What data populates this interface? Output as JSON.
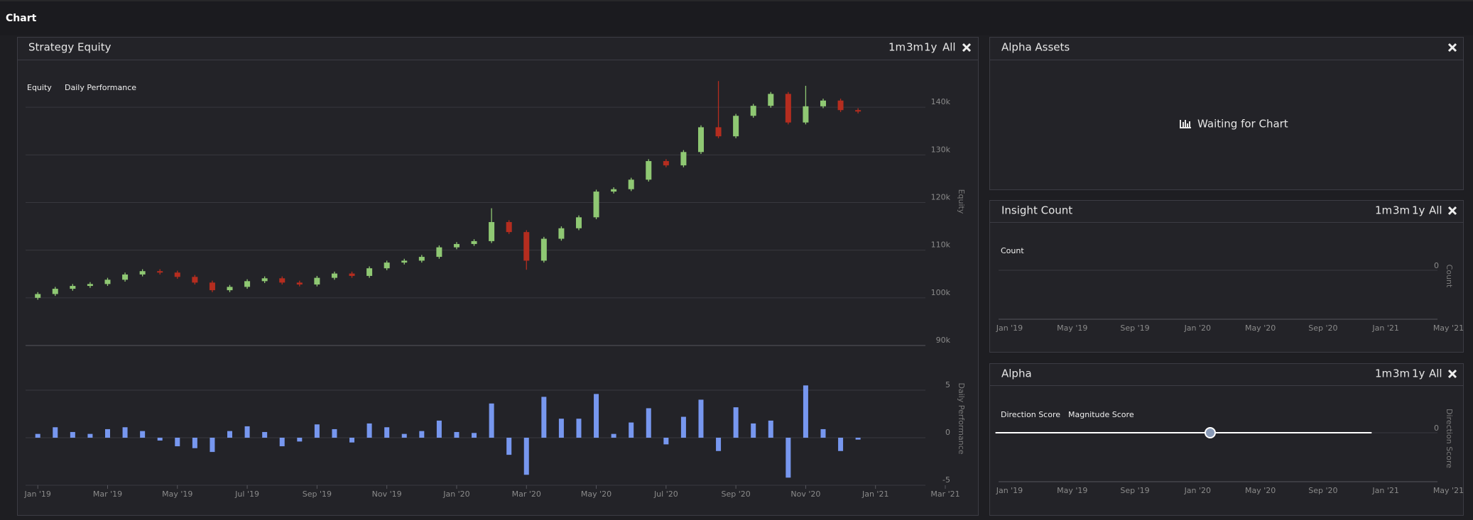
{
  "header": {
    "title": "Chart"
  },
  "panels": [
    {
      "title": "Strategy Equity",
      "buttons": [
        "1m",
        "3m",
        "1y",
        "All"
      ]
    },
    {
      "title": "Alpha Assets",
      "message": "Waiting for Chart"
    },
    {
      "title": "Insight Count",
      "buttons": [
        "1m",
        "3m",
        "1y",
        "All"
      ]
    },
    {
      "title": "Alpha",
      "buttons": [
        "1m",
        "3m",
        "1y",
        "All"
      ]
    }
  ],
  "chart_data": [
    {
      "type": "candlestick",
      "name": "Equity",
      "ylabel": "Equity",
      "up_color": "#8fc873",
      "down_color": "#b52d1f",
      "x": [
        0,
        0.5,
        1,
        1.5,
        2,
        2.5,
        3,
        3.5,
        4,
        4.5,
        5,
        5.5,
        6,
        6.5,
        7,
        7.5,
        8,
        8.5,
        9,
        9.5,
        10,
        10.5,
        11,
        11.5,
        12,
        12.5,
        13,
        13.5,
        14,
        14.5,
        15,
        15.5,
        16,
        16.5,
        17,
        17.5,
        18,
        18.5,
        19,
        19.5,
        20,
        20.5,
        21,
        21.5,
        22,
        22.5,
        23,
        23.5
      ],
      "open": [
        100000,
        100800,
        101900,
        102500,
        102900,
        103800,
        104900,
        105600,
        105300,
        104400,
        103200,
        101600,
        102300,
        103500,
        104100,
        103200,
        102800,
        104200,
        105100,
        104600,
        106200,
        107400,
        107800,
        108600,
        110600,
        111300,
        111900,
        115900,
        113800,
        107800,
        112400,
        114600,
        116900,
        122300,
        122800,
        124800,
        128700,
        127800,
        130600,
        135800,
        133900,
        138200,
        140300,
        142800,
        136800,
        140200,
        141400,
        139400
      ],
      "high": [
        101200,
        102300,
        102900,
        103300,
        104200,
        105300,
        106000,
        106000,
        105700,
        104800,
        103600,
        102700,
        103900,
        104500,
        104500,
        103600,
        104600,
        105500,
        105500,
        106600,
        107800,
        108200,
        109000,
        111000,
        111700,
        112300,
        118800,
        116300,
        114200,
        112800,
        115000,
        117300,
        122700,
        123200,
        125200,
        129100,
        129100,
        131000,
        136200,
        145500,
        138600,
        140700,
        143200,
        143200,
        144500,
        141800,
        141800,
        139800
      ],
      "low": [
        99600,
        100400,
        101500,
        102100,
        102500,
        103400,
        104500,
        104900,
        104000,
        102800,
        101200,
        101200,
        101900,
        103100,
        102800,
        102400,
        102400,
        103800,
        104200,
        104200,
        105800,
        107000,
        107400,
        108200,
        110200,
        110900,
        111500,
        113400,
        105900,
        107400,
        112000,
        114200,
        116500,
        121900,
        122400,
        124400,
        127400,
        127400,
        130200,
        133500,
        133500,
        137800,
        139900,
        136400,
        136400,
        139800,
        139000,
        138700
      ],
      "close": [
        100800,
        101900,
        102500,
        102900,
        103800,
        104900,
        105600,
        105300,
        104400,
        103200,
        101600,
        102300,
        103500,
        104100,
        103200,
        102800,
        104200,
        105100,
        104600,
        106200,
        107400,
        107800,
        108600,
        110600,
        111300,
        111900,
        115900,
        113800,
        107800,
        112400,
        114600,
        116900,
        122300,
        122800,
        124800,
        128700,
        127800,
        130600,
        135800,
        133900,
        138200,
        140300,
        142800,
        136800,
        140200,
        141400,
        139400,
        139100
      ],
      "xlim": [
        -0.35,
        25.43
      ],
      "ylim": [
        90000,
        150000
      ],
      "yticks": [
        {
          "value": 90000,
          "label": "90k"
        },
        {
          "value": 100000,
          "label": "100k"
        },
        {
          "value": 110000,
          "label": "110k"
        },
        {
          "value": 120000,
          "label": "120k"
        },
        {
          "value": 130000,
          "label": "130k"
        },
        {
          "value": 140000,
          "label": "140k"
        }
      ],
      "grid": true
    },
    {
      "type": "bar",
      "name": "Daily Performance",
      "ylabel": "Daily Performance",
      "color": "#7797ef",
      "x": [
        0,
        0.5,
        1,
        1.5,
        2,
        2.5,
        3,
        3.5,
        4,
        4.5,
        5,
        5.5,
        6,
        6.5,
        7,
        7.5,
        8,
        8.5,
        9,
        9.5,
        10,
        10.5,
        11,
        11.5,
        12,
        12.5,
        13,
        13.5,
        14,
        14.5,
        15,
        15.5,
        16,
        16.5,
        17,
        17.5,
        18,
        18.5,
        19,
        19.5,
        20,
        20.5,
        21,
        21.5,
        22,
        22.5,
        23,
        23.5
      ],
      "values": [
        0.4,
        1.1,
        0.6,
        0.4,
        0.9,
        1.1,
        0.7,
        -0.3,
        -0.9,
        -1.1,
        -1.5,
        0.7,
        1.2,
        0.6,
        -0.9,
        -0.4,
        1.4,
        0.9,
        -0.5,
        1.5,
        1.1,
        0.4,
        0.7,
        1.8,
        0.6,
        0.5,
        3.6,
        -1.8,
        -3.9,
        4.3,
        2.0,
        2.0,
        4.6,
        0.4,
        1.6,
        3.1,
        -0.7,
        2.2,
        4.0,
        -1.4,
        3.2,
        1.5,
        1.8,
        -4.2,
        5.5,
        0.9,
        -1.4,
        -0.2
      ],
      "xlim": [
        -0.35,
        25.43
      ],
      "ylim": [
        -5,
        5
      ],
      "yticks": [
        -5,
        0,
        5
      ],
      "grid": true,
      "xticks": [
        {
          "value": 0,
          "label": "Jan '19"
        },
        {
          "value": 2,
          "label": "Mar '19"
        },
        {
          "value": 4,
          "label": "May '19"
        },
        {
          "value": 6,
          "label": "Jul '19"
        },
        {
          "value": 8,
          "label": "Sep '19"
        },
        {
          "value": 10,
          "label": "Nov '19"
        },
        {
          "value": 12,
          "label": "Jan '20"
        },
        {
          "value": 14,
          "label": "Mar '20"
        },
        {
          "value": 16,
          "label": "May '20"
        },
        {
          "value": 18,
          "label": "Jul '20"
        },
        {
          "value": 20,
          "label": "Sep '20"
        },
        {
          "value": 22,
          "label": "Nov '20"
        },
        {
          "value": 24,
          "label": "Jan '21"
        },
        {
          "value": 26,
          "label": "Mar '21"
        }
      ]
    },
    {
      "type": "line",
      "ylabel": "Count",
      "series": [
        {
          "name": "Count",
          "color": "#ffffff",
          "x": [],
          "values": []
        }
      ],
      "xlim": [
        -0.7,
        27.3
      ],
      "yticks": [
        0
      ],
      "xticks": [
        {
          "value": 0,
          "label": "Jan '19"
        },
        {
          "value": 4,
          "label": "May '19"
        },
        {
          "value": 8,
          "label": "Sep '19"
        },
        {
          "value": 12,
          "label": "Jan '20"
        },
        {
          "value": 16,
          "label": "May '20"
        },
        {
          "value": 20,
          "label": "Sep '20"
        },
        {
          "value": 24,
          "label": "Jan '21"
        },
        {
          "value": 28,
          "label": "May '21"
        }
      ]
    },
    {
      "type": "line",
      "ylabel": "Direction Score",
      "series": [
        {
          "name": "Direction Score",
          "color": "#ffffff",
          "x": [
            -0.9,
            12.8,
            23.1
          ],
          "values": [
            0,
            0,
            0
          ]
        },
        {
          "name": "Magnitude Score",
          "color": "#f0a030",
          "x": [],
          "values": []
        }
      ],
      "xlim": [
        -0.7,
        27.3
      ],
      "yticks": [
        0
      ],
      "xticks": [
        {
          "value": 0,
          "label": "Jan '19"
        },
        {
          "value": 4,
          "label": "May '19"
        },
        {
          "value": 8,
          "label": "Sep '19"
        },
        {
          "value": 12,
          "label": "Jan '20"
        },
        {
          "value": 16,
          "label": "May '20"
        },
        {
          "value": 20,
          "label": "Sep '20"
        },
        {
          "value": 24,
          "label": "Jan '21"
        },
        {
          "value": 28,
          "label": "May '21"
        }
      ]
    }
  ]
}
